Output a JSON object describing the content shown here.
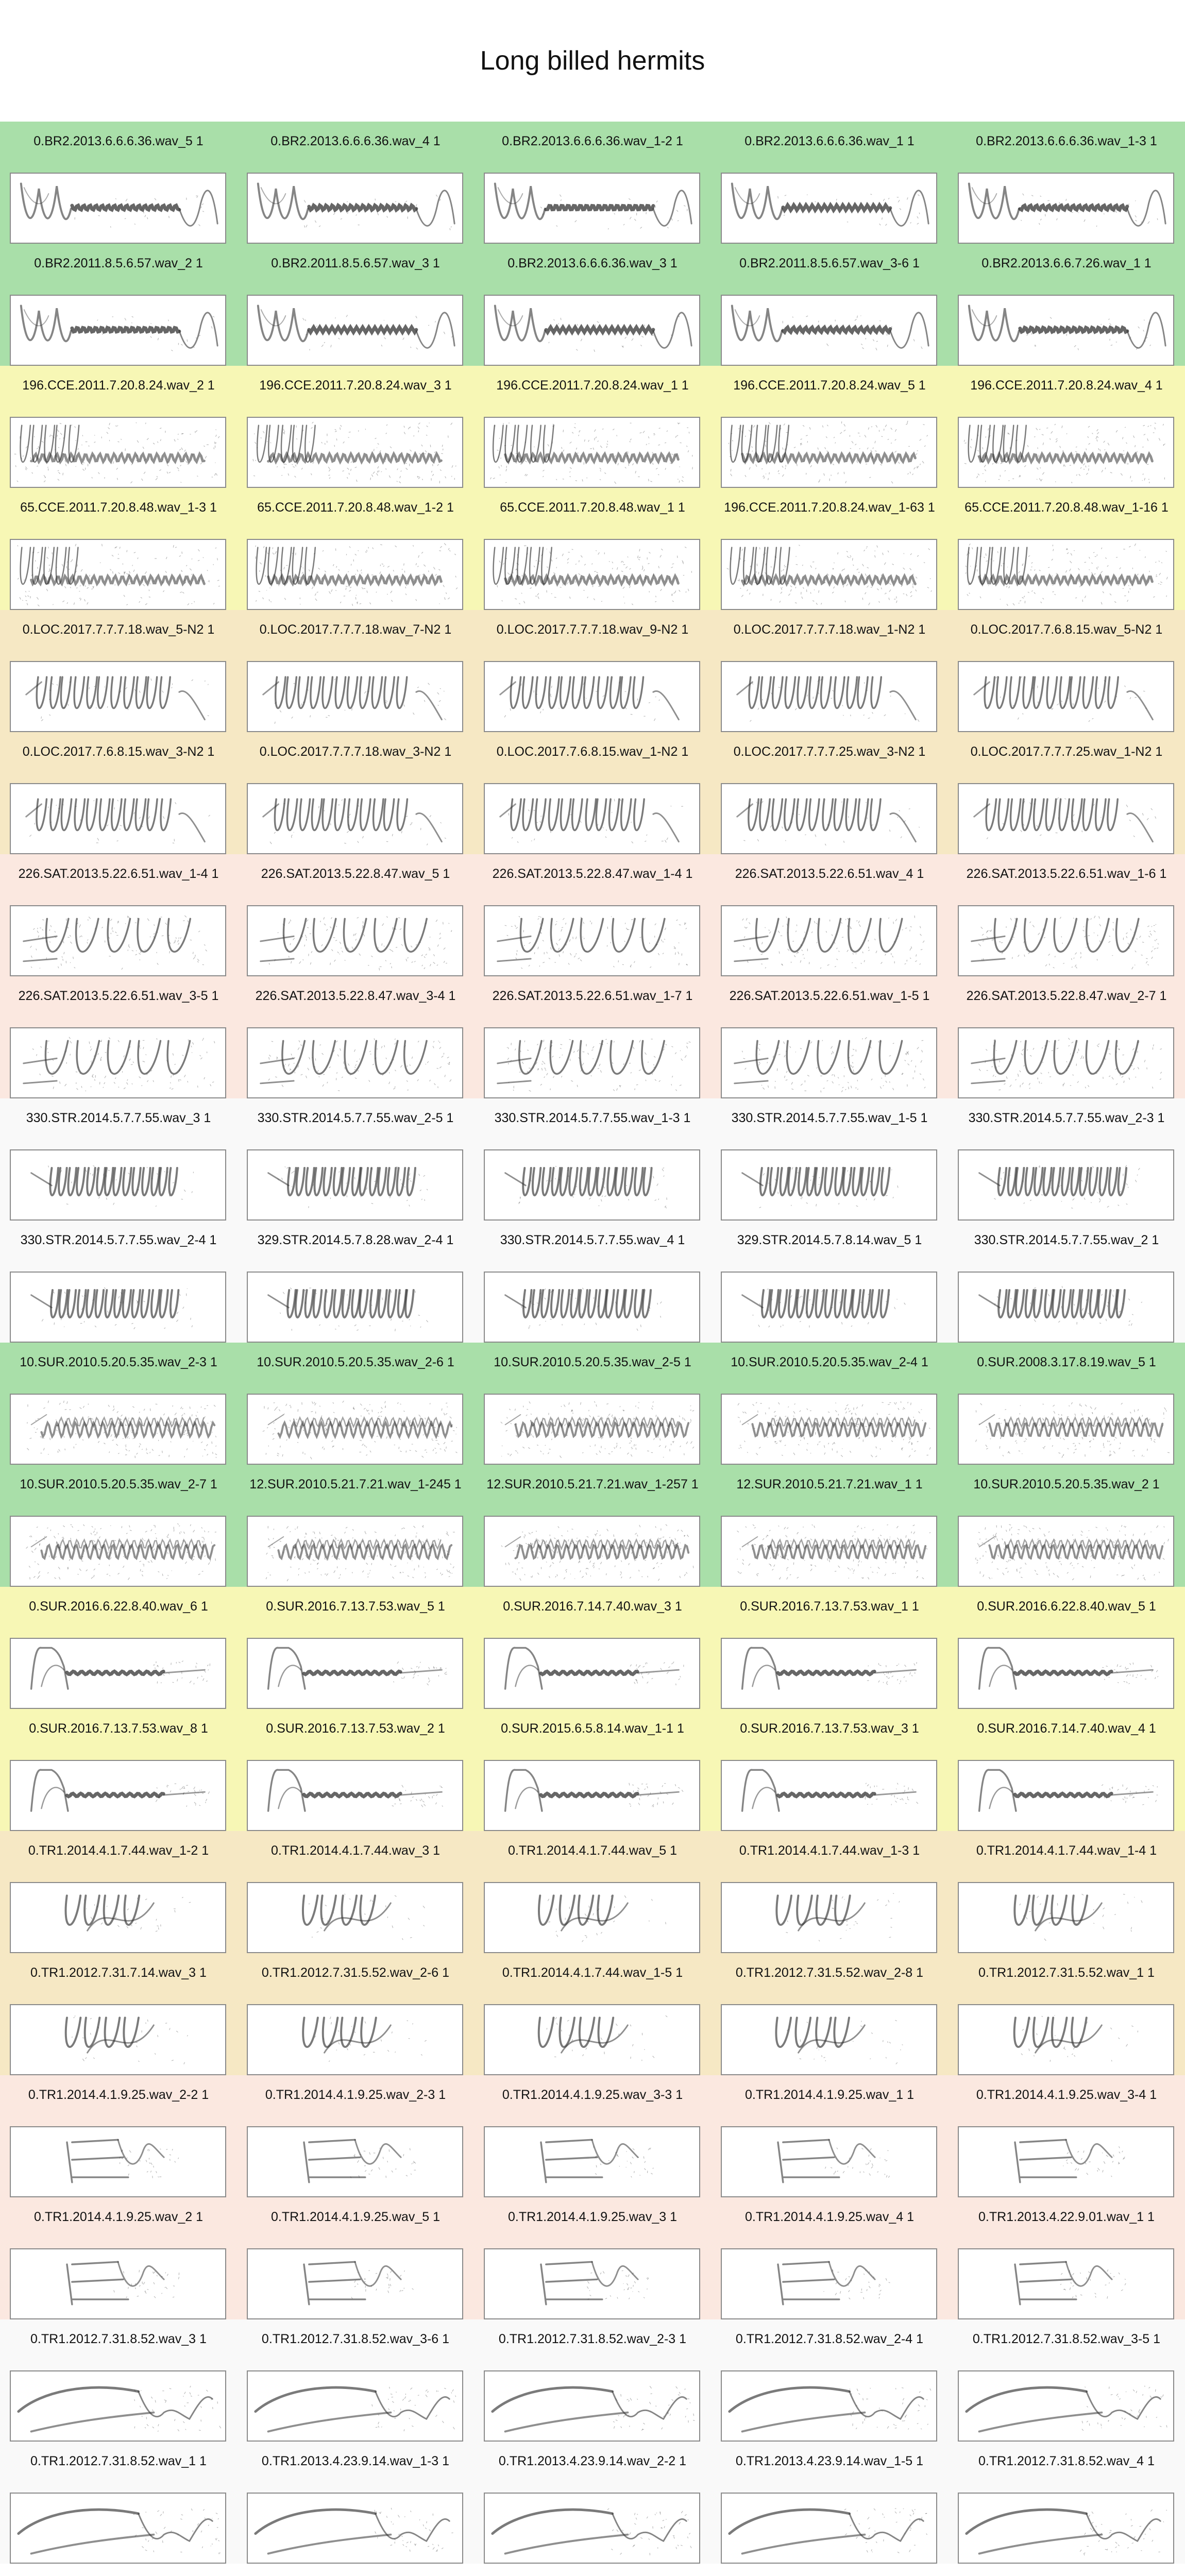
{
  "title": "Long billed hermits",
  "groups": [
    {
      "color": "#a9dfa9",
      "rows": [
        {
          "pattern": "br2",
          "labels": [
            "0.BR2.2013.6.6.6.36.wav_5 1",
            "0.BR2.2013.6.6.6.36.wav_4 1",
            "0.BR2.2013.6.6.6.36.wav_1-2 1",
            "0.BR2.2013.6.6.6.36.wav_1 1",
            "0.BR2.2013.6.6.6.36.wav_1-3 1"
          ]
        },
        {
          "pattern": "br2",
          "labels": [
            "0.BR2.2011.8.5.6.57.wav_2 1",
            "0.BR2.2011.8.5.6.57.wav_3 1",
            "0.BR2.2013.6.6.6.36.wav_3 1",
            "0.BR2.2011.8.5.6.57.wav_3-6 1",
            "0.BR2.2013.6.6.7.26.wav_1 1"
          ]
        }
      ]
    },
    {
      "color": "#f7f7b5",
      "rows": [
        {
          "pattern": "cce",
          "labels": [
            "196.CCE.2011.7.20.8.24.wav_2 1",
            "196.CCE.2011.7.20.8.24.wav_3 1",
            "196.CCE.2011.7.20.8.24.wav_1 1",
            "196.CCE.2011.7.20.8.24.wav_5 1",
            "196.CCE.2011.7.20.8.24.wav_4 1"
          ]
        },
        {
          "pattern": "cce",
          "labels": [
            "65.CCE.2011.7.20.8.48.wav_1-3 1",
            "65.CCE.2011.7.20.8.48.wav_1-2 1",
            "65.CCE.2011.7.20.8.48.wav_1 1",
            "196.CCE.2011.7.20.8.24.wav_1-63 1",
            "65.CCE.2011.7.20.8.48.wav_1-16 1"
          ]
        }
      ]
    },
    {
      "color": "#f6e8c4",
      "rows": [
        {
          "pattern": "loc",
          "labels": [
            "0.LOC.2017.7.7.7.18.wav_5-N2 1",
            "0.LOC.2017.7.7.7.18.wav_7-N2 1",
            "0.LOC.2017.7.7.7.18.wav_9-N2 1",
            "0.LOC.2017.7.7.7.18.wav_1-N2 1",
            "0.LOC.2017.7.6.8.15.wav_5-N2 1"
          ]
        },
        {
          "pattern": "loc",
          "labels": [
            "0.LOC.2017.7.6.8.15.wav_3-N2 1",
            "0.LOC.2017.7.7.7.18.wav_3-N2 1",
            "0.LOC.2017.7.6.8.15.wav_1-N2 1",
            "0.LOC.2017.7.7.7.25.wav_3-N2 1",
            "0.LOC.2017.7.7.7.25.wav_1-N2 1"
          ]
        }
      ]
    },
    {
      "color": "#fbe8e0",
      "rows": [
        {
          "pattern": "sat",
          "labels": [
            "226.SAT.2013.5.22.6.51.wav_1-4 1",
            "226.SAT.2013.5.22.8.47.wav_5 1",
            "226.SAT.2013.5.22.8.47.wav_1-4 1",
            "226.SAT.2013.5.22.6.51.wav_4 1",
            "226.SAT.2013.5.22.6.51.wav_1-6 1"
          ]
        },
        {
          "pattern": "sat",
          "labels": [
            "226.SAT.2013.5.22.6.51.wav_3-5 1",
            "226.SAT.2013.5.22.8.47.wav_3-4 1",
            "226.SAT.2013.5.22.6.51.wav_1-7 1",
            "226.SAT.2013.5.22.6.51.wav_1-5 1",
            "226.SAT.2013.5.22.8.47.wav_2-7 1"
          ]
        }
      ]
    },
    {
      "color": "#f9f9f9",
      "rows": [
        {
          "pattern": "str",
          "labels": [
            "330.STR.2014.5.7.7.55.wav_3 1",
            "330.STR.2014.5.7.7.55.wav_2-5 1",
            "330.STR.2014.5.7.7.55.wav_1-3 1",
            "330.STR.2014.5.7.7.55.wav_1-5 1",
            "330.STR.2014.5.7.7.55.wav_2-3 1"
          ]
        },
        {
          "pattern": "str",
          "labels": [
            "330.STR.2014.5.7.7.55.wav_2-4 1",
            "329.STR.2014.5.7.8.28.wav_2-4 1",
            "330.STR.2014.5.7.7.55.wav_4 1",
            "329.STR.2014.5.7.8.14.wav_5 1",
            "330.STR.2014.5.7.7.55.wav_2 1"
          ]
        }
      ]
    },
    {
      "color": "#a9dfa9",
      "rows": [
        {
          "pattern": "sur1",
          "labels": [
            "10.SUR.2010.5.20.5.35.wav_2-3 1",
            "10.SUR.2010.5.20.5.35.wav_2-6 1",
            "10.SUR.2010.5.20.5.35.wav_2-5 1",
            "10.SUR.2010.5.20.5.35.wav_2-4 1",
            "0.SUR.2008.3.17.8.19.wav_5 1"
          ]
        },
        {
          "pattern": "sur1",
          "labels": [
            "10.SUR.2010.5.20.5.35.wav_2-7 1",
            "12.SUR.2010.5.21.7.21.wav_1-245 1",
            "12.SUR.2010.5.21.7.21.wav_1-257 1",
            "12.SUR.2010.5.21.7.21.wav_1 1",
            "10.SUR.2010.5.20.5.35.wav_2 1"
          ]
        }
      ]
    },
    {
      "color": "#f7f7b5",
      "rows": [
        {
          "pattern": "sur2",
          "labels": [
            "0.SUR.2016.6.22.8.40.wav_6 1",
            "0.SUR.2016.7.13.7.53.wav_5 1",
            "0.SUR.2016.7.14.7.40.wav_3 1",
            "0.SUR.2016.7.13.7.53.wav_1 1",
            "0.SUR.2016.6.22.8.40.wav_5 1"
          ]
        },
        {
          "pattern": "sur2",
          "labels": [
            "0.SUR.2016.7.13.7.53.wav_8 1",
            "0.SUR.2016.7.13.7.53.wav_2 1",
            "0.SUR.2015.6.5.8.14.wav_1-1 1",
            "0.SUR.2016.7.13.7.53.wav_3 1",
            "0.SUR.2016.7.14.7.40.wav_4 1"
          ]
        }
      ]
    },
    {
      "color": "#f6e8c4",
      "rows": [
        {
          "pattern": "tr1a",
          "labels": [
            "0.TR1.2014.4.1.7.44.wav_1-2 1",
            "0.TR1.2014.4.1.7.44.wav_3 1",
            "0.TR1.2014.4.1.7.44.wav_5 1",
            "0.TR1.2014.4.1.7.44.wav_1-3 1",
            "0.TR1.2014.4.1.7.44.wav_1-4 1"
          ]
        },
        {
          "pattern": "tr1a",
          "labels": [
            "0.TR1.2012.7.31.7.14.wav_3 1",
            "0.TR1.2012.7.31.5.52.wav_2-6 1",
            "0.TR1.2014.4.1.7.44.wav_1-5 1",
            "0.TR1.2012.7.31.5.52.wav_2-8 1",
            "0.TR1.2012.7.31.5.52.wav_1 1"
          ]
        }
      ]
    },
    {
      "color": "#fbe8e0",
      "rows": [
        {
          "pattern": "tr1b",
          "labels": [
            "0.TR1.2014.4.1.9.25.wav_2-2 1",
            "0.TR1.2014.4.1.9.25.wav_2-3 1",
            "0.TR1.2014.4.1.9.25.wav_3-3 1",
            "0.TR1.2014.4.1.9.25.wav_1 1",
            "0.TR1.2014.4.1.9.25.wav_3-4 1"
          ]
        },
        {
          "pattern": "tr1b",
          "labels": [
            "0.TR1.2014.4.1.9.25.wav_2 1",
            "0.TR1.2014.4.1.9.25.wav_5 1",
            "0.TR1.2014.4.1.9.25.wav_3 1",
            "0.TR1.2014.4.1.9.25.wav_4 1",
            "0.TR1.2013.4.22.9.01.wav_1 1"
          ]
        }
      ]
    },
    {
      "color": "#f9f9f9",
      "rows": [
        {
          "pattern": "tr1c",
          "labels": [
            "0.TR1.2012.7.31.8.52.wav_3 1",
            "0.TR1.2012.7.31.8.52.wav_3-6 1",
            "0.TR1.2012.7.31.8.52.wav_2-3 1",
            "0.TR1.2012.7.31.8.52.wav_2-4 1",
            "0.TR1.2012.7.31.8.52.wav_3-5 1"
          ]
        },
        {
          "pattern": "tr1c",
          "labels": [
            "0.TR1.2012.7.31.8.52.wav_1 1",
            "0.TR1.2013.4.23.9.14.wav_1-3 1",
            "0.TR1.2013.4.23.9.14.wav_2-2 1",
            "0.TR1.2013.4.23.9.14.wav_1-5 1",
            "0.TR1.2012.7.31.8.52.wav_4 1"
          ]
        }
      ]
    }
  ]
}
